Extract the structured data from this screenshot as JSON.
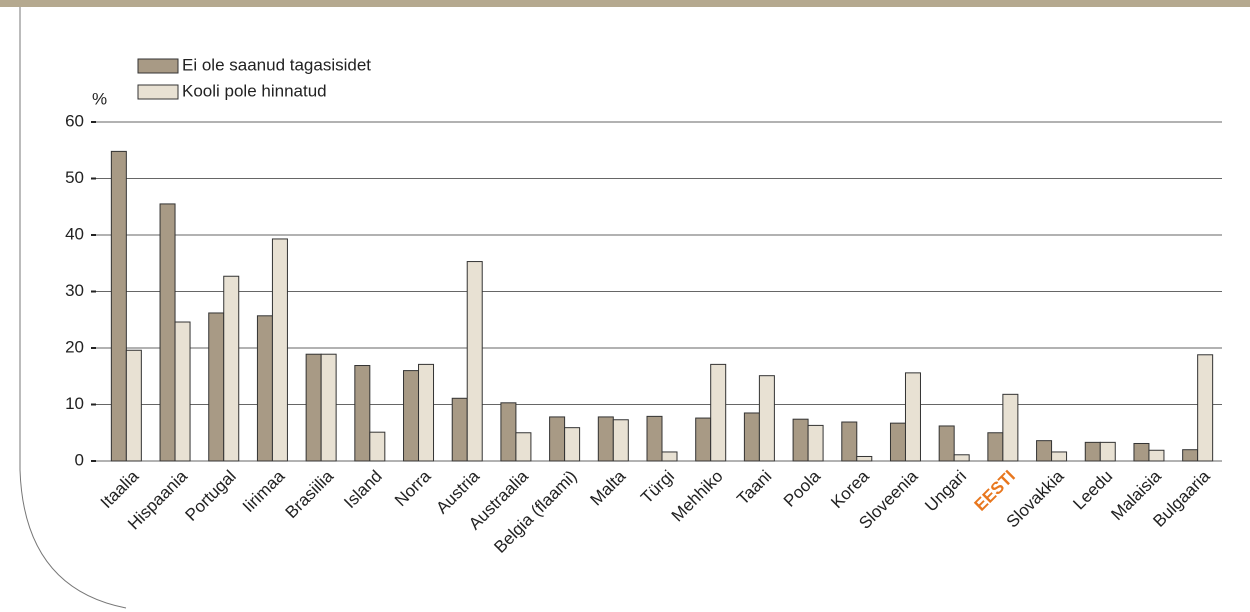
{
  "chart_data": {
    "type": "bar",
    "y_label": "%",
    "categories": [
      "Itaalia",
      "Hispaania",
      "Portugal",
      "Iirimaa",
      "Brasiilia",
      "Island",
      "Norra",
      "Austria",
      "Austraalia",
      "Belgia (flaami)",
      "Malta",
      "Türgi",
      "Mehhiko",
      "Taani",
      "Poola",
      "Korea",
      "Sloveenia",
      "Ungari",
      "EESTI",
      "Slovakkia",
      "Leedu",
      "Malaisia",
      "Bulgaaria"
    ],
    "series": [
      {
        "name": "Ei ole saanud tagasisidet",
        "color": "#a89a85",
        "values": [
          54.8,
          45.5,
          26.2,
          25.7,
          18.9,
          16.9,
          16.0,
          11.1,
          10.3,
          7.8,
          7.8,
          7.9,
          7.6,
          8.5,
          7.4,
          6.9,
          6.7,
          6.2,
          5.0,
          3.6,
          3.3,
          3.1,
          2.0
        ]
      },
      {
        "name": "Kooli pole hinnatud",
        "color": "#e8e1d3",
        "values": [
          19.6,
          24.6,
          32.7,
          39.3,
          18.9,
          5.1,
          17.1,
          35.3,
          5.0,
          5.9,
          7.3,
          1.6,
          17.1,
          15.1,
          6.3,
          0.8,
          15.6,
          1.1,
          11.8,
          1.6,
          3.3,
          1.9,
          18.8
        ]
      }
    ],
    "ylim": [
      0,
      60
    ],
    "yticks": [
      0,
      10,
      20,
      30,
      40,
      50,
      60
    ],
    "grid": true,
    "highlight_index": 18,
    "highlight_color": "#e8771e"
  }
}
